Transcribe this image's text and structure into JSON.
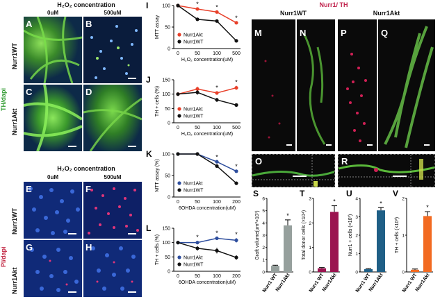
{
  "left": {
    "top_header": "H₂O₂ concentration",
    "bottom_header": "H₂O₂ concentration",
    "conc_0": "0uM",
    "conc_500": "500uM",
    "stain_top": "TH/dapi",
    "stain_bottom": "PI/dapi",
    "row_wt": "Nurr1WT",
    "row_akt": "Nurr1Akt",
    "panels": {
      "A": "A",
      "B": "B",
      "C": "C",
      "D": "D",
      "E": "E",
      "F": "F",
      "G": "G",
      "H": "H"
    }
  },
  "right": {
    "header_title": "Nurr1/ TH",
    "header_wt": "Nurr1WT",
    "header_akt": "Nurr1Akt",
    "panels": {
      "M": "M",
      "N": "N",
      "P": "P",
      "Q": "Q",
      "O": "O",
      "R": "R"
    }
  },
  "colors": {
    "akt_red": "#e8402a",
    "wt_black": "#111111",
    "akt_blue": "#2e4e9e",
    "th_green": "#6fd24a",
    "nurr1_red": "#e0265a",
    "bar_gray": "#96a09d",
    "bar_magenta": "#9b1450",
    "bar_teal": "#1f5f86",
    "bar_orange": "#f26a21"
  },
  "chart_data": [
    {
      "panel": "I",
      "type": "line",
      "ylabel": "MTT assay",
      "xlabel": "H₂O₂ concentration(uM)",
      "x": [
        "0",
        "50",
        "100",
        "500"
      ],
      "series": [
        {
          "name": "Nurr1Akt",
          "color": "#e8402a",
          "values": [
            100,
            92,
            85,
            60
          ],
          "err": [
            2,
            3,
            3,
            3
          ]
        },
        {
          "name": "Nurr1WT",
          "color": "#111111",
          "values": [
            100,
            68,
            64,
            18
          ],
          "err": [
            2,
            3,
            3,
            2
          ]
        }
      ],
      "stars": [
        "50",
        "100",
        "500"
      ],
      "ylim": [
        0,
        100
      ],
      "yticks": [
        0,
        50,
        100
      ],
      "legend": "bottom-left"
    },
    {
      "panel": "J",
      "type": "line",
      "ylabel": "TH + cells (%)",
      "xlabel": "H₂O₂ concentration(uM)",
      "x": [
        "0",
        "50",
        "100",
        "500"
      ],
      "series": [
        {
          "name": "Nurr1Akt",
          "color": "#e8402a",
          "values": [
            100,
            118,
            104,
            122
          ],
          "err": [
            3,
            8,
            6,
            7
          ]
        },
        {
          "name": "Nurr1WT",
          "color": "#111111",
          "values": [
            100,
            106,
            80,
            62
          ],
          "err": [
            3,
            8,
            7,
            5
          ]
        }
      ],
      "stars": [
        "100",
        "500"
      ],
      "ylim": [
        0,
        150
      ],
      "yticks": [
        0,
        50,
        100,
        150
      ],
      "legend": "bottom-left"
    },
    {
      "panel": "K",
      "type": "line",
      "ylabel": "MTT assay (%)",
      "xlabel": "6OHDA concentration(uM)",
      "x": [
        "0",
        "50",
        "100",
        "200"
      ],
      "series": [
        {
          "name": "Nurr1Akt",
          "color": "#2e4e9e",
          "values": [
            100,
            100,
            82,
            60
          ],
          "err": [
            2,
            2,
            3,
            3
          ]
        },
        {
          "name": "Nurr1WT",
          "color": "#111111",
          "values": [
            100,
            100,
            72,
            32
          ],
          "err": [
            2,
            2,
            3,
            3
          ]
        }
      ],
      "stars": [
        "100",
        "200"
      ],
      "ylim": [
        0,
        100
      ],
      "yticks": [
        0,
        50,
        100
      ],
      "legend": "bottom-left"
    },
    {
      "panel": "L",
      "type": "line",
      "ylabel": "TH + cells (%)",
      "xlabel": "6OHDA concentration(uM)",
      "x": [
        "0",
        "50",
        "100",
        "200"
      ],
      "series": [
        {
          "name": "Nurr1Akt",
          "color": "#2e4e9e",
          "values": [
            100,
            100,
            115,
            108
          ],
          "err": [
            3,
            6,
            6,
            8
          ]
        },
        {
          "name": "Nurr1WT",
          "color": "#111111",
          "values": [
            100,
            80,
            72,
            48
          ],
          "err": [
            3,
            8,
            10,
            8
          ]
        }
      ],
      "stars": [
        "50",
        "100",
        "200"
      ],
      "ylim": [
        0,
        150
      ],
      "yticks": [
        0,
        50,
        100,
        150
      ],
      "legend": "bottom-left"
    },
    {
      "panel": "S",
      "type": "bar",
      "ylabel": "Graft volume(um³×10⁷)",
      "categories": [
        "Nurr1 WT",
        "Nurr1Akt"
      ],
      "values": [
        0.5,
        3.8
      ],
      "err": [
        0.05,
        0.45
      ],
      "color": "#96a09d",
      "ylim": [
        0,
        6
      ],
      "yticks": [
        0,
        1,
        2,
        3,
        4,
        5,
        6
      ],
      "star": true
    },
    {
      "panel": "T",
      "type": "bar",
      "ylabel": "Total donor cells (×10⁴)",
      "categories": [
        "Nurr1 WT",
        "Nurr1Akt"
      ],
      "values": [
        0.15,
        2.45
      ],
      "err": [
        0.03,
        0.25
      ],
      "color": "#9b1450",
      "ylim": [
        0,
        3
      ],
      "yticks": [
        0,
        1,
        2,
        3
      ],
      "star": true
    },
    {
      "panel": "U",
      "type": "bar",
      "ylabel": "Nurr1 + cells (×10³)",
      "categories": [
        "Nurr1 WT",
        "Nurr1Akt"
      ],
      "values": [
        0.15,
        3.35
      ],
      "err": [
        0.03,
        0.15
      ],
      "color": "#1f5f86",
      "ylim": [
        0,
        4
      ],
      "yticks": [
        0,
        1,
        2,
        3,
        4
      ],
      "star": true
    },
    {
      "panel": "V",
      "type": "bar",
      "ylabel": "TH + cells (×10³)",
      "categories": [
        "Nurr1 WT",
        "Nurr1Akt"
      ],
      "values": [
        0.06,
        1.52
      ],
      "err": [
        0.02,
        0.12
      ],
      "color": "#f26a21",
      "ylim": [
        0,
        2
      ],
      "yticks": [
        0,
        1,
        2
      ],
      "star": true
    }
  ]
}
